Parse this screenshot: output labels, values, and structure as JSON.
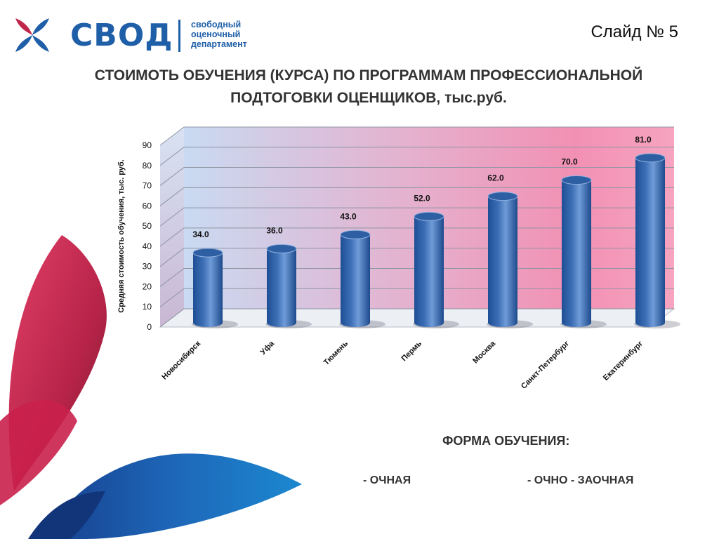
{
  "header": {
    "brand_name": "СВОД",
    "brand_tagline": [
      "свободный",
      "оценочный",
      "департамент"
    ],
    "slide_number": "Слайд № 5",
    "logo_colors": {
      "blue": "#1f5fa8",
      "red": "#c0264a"
    }
  },
  "title": {
    "line1": "СТОИМОТЬ ОБУЧЕНИЯ (КУРСА) ПО ПРОГРАММАМ ПРОФЕССИОНАЛЬНОЙ",
    "line2": "ПОДТОГОВКИ ОЦЕНЩИКОВ, тыс.руб."
  },
  "chart_data": {
    "type": "bar",
    "style": "3d-cylinder",
    "ylabel": "Средняя стоимость обучения, тыс. руб.",
    "ylim": [
      0,
      90
    ],
    "yticks": [
      0,
      10,
      20,
      30,
      40,
      50,
      60,
      70,
      80,
      90
    ],
    "grid": true,
    "bar_color": "#3d6fb6",
    "categories": [
      "Новосибирск",
      "Уфа",
      "Тюмень",
      "Пермь",
      "Москва",
      "Санкт-Петербург",
      "Екатеринбург"
    ],
    "values": [
      34.0,
      36.0,
      43.0,
      52.0,
      62.0,
      70.0,
      81.0
    ],
    "data_labels": [
      "34.0",
      "36.0",
      "43.0",
      "52.0",
      "62.0",
      "70.0",
      "81.0"
    ]
  },
  "footer": {
    "form_label": "ФОРМА ОБУЧЕНИЯ:",
    "option_1": "- ОЧНАЯ",
    "option_2": "- ОЧНО - ЗАОЧНАЯ"
  }
}
